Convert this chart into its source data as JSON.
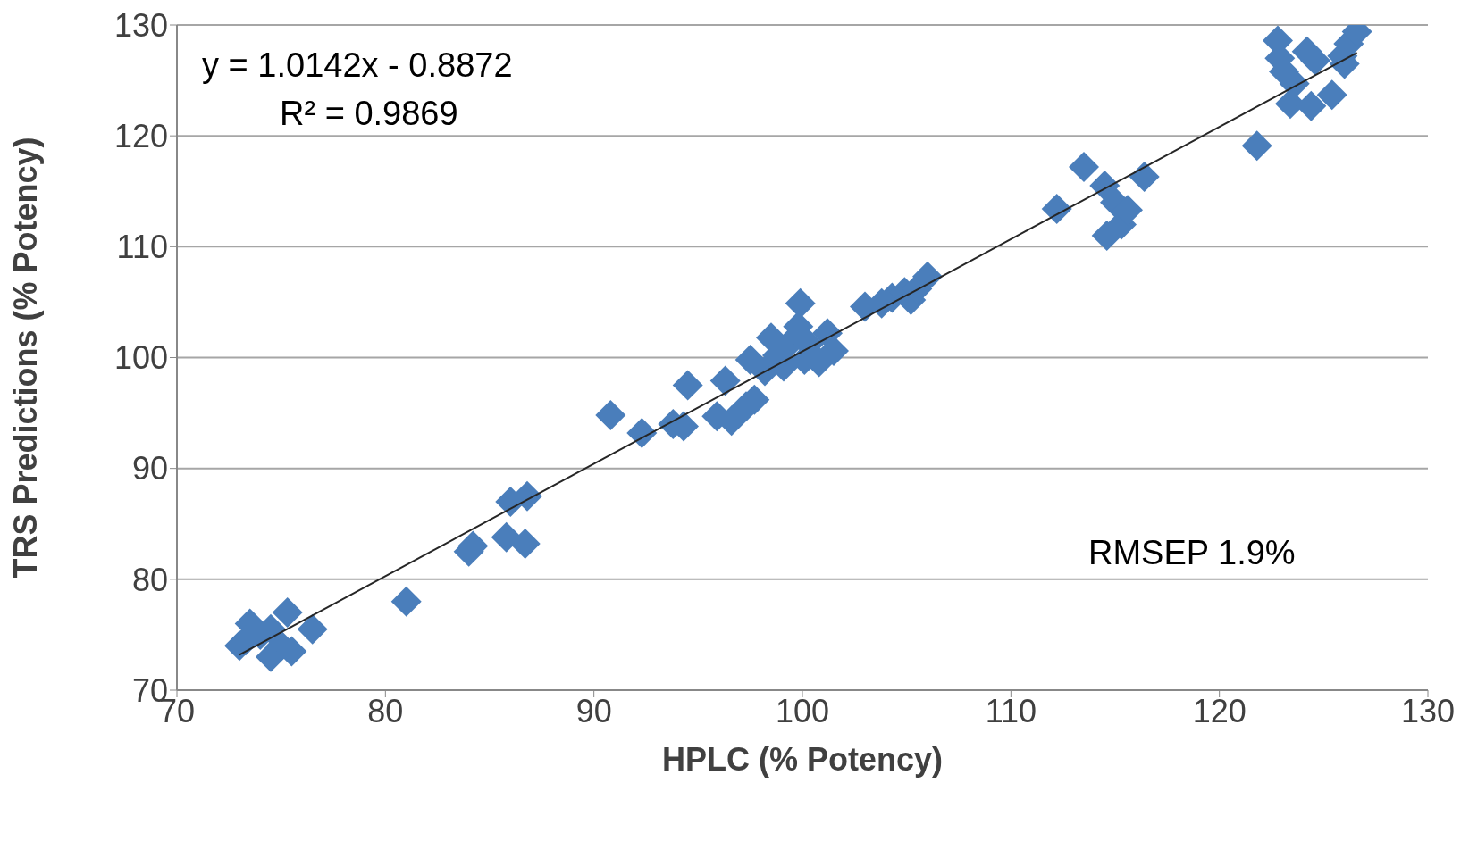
{
  "chart_data": {
    "type": "scatter",
    "xlabel": "HPLC (% Potency)",
    "ylabel": "TRS Predictions (% Potency)",
    "annotations": [
      "y = 1.0142x - 0.8872",
      "R² = 0.9869",
      "RMSEP 1.9%"
    ],
    "xlim": [
      70,
      130
    ],
    "xticks": [
      70,
      80,
      90,
      100,
      110,
      120,
      130
    ],
    "ylim": [
      70,
      130
    ],
    "yticks": [
      70,
      80,
      90,
      100,
      110,
      120,
      130
    ],
    "grid": "y",
    "marker": "diamond",
    "series": [
      {
        "color": "#4a7ebb",
        "x": [
          73,
          73.5,
          74,
          74.5,
          74.5,
          75,
          75.3,
          75.5,
          76.5,
          73.3,
          81,
          84,
          84.2,
          85.8,
          86,
          86.7,
          86.8,
          90.8,
          92.3,
          93.8,
          94.3,
          94.5,
          95.9,
          96.3,
          96.6,
          97.3,
          97.7,
          97.5,
          98.2,
          98.5,
          98.8,
          99.1,
          99.5,
          99.9,
          99.8,
          100.1,
          100.3,
          100.8,
          101.2,
          101.5,
          103,
          103.8,
          104.3,
          104.9,
          105.2,
          105.5,
          106,
          112.2,
          113.5,
          114.5,
          114.6,
          115,
          115.3,
          115.6,
          116.4,
          121.8,
          122.8,
          122.9,
          123.1,
          123.4,
          123.6,
          124.2,
          124.4,
          124.6,
          125.4,
          125.9,
          126.2,
          126.6,
          126
        ],
        "values": [
          74,
          76,
          75,
          73,
          75.5,
          74,
          77,
          73.5,
          75.5,
          74.5,
          78,
          82.5,
          83,
          83.8,
          87,
          83.2,
          87.5,
          94.8,
          93.2,
          94,
          93.8,
          97.5,
          94.7,
          97.9,
          94.3,
          95.6,
          96.2,
          99.8,
          98.8,
          101.8,
          100.2,
          99.2,
          101.5,
          104.9,
          102.8,
          99.8,
          101.2,
          99.6,
          102.2,
          100.6,
          104.6,
          104.9,
          105.4,
          105.9,
          105.2,
          106.2,
          107.3,
          113.4,
          117.2,
          115.5,
          111,
          114,
          112,
          113.3,
          116.3,
          119.1,
          128.6,
          127,
          125.8,
          122.9,
          124.7,
          127.6,
          122.7,
          126.8,
          123.7,
          127.2,
          128.3,
          129.4,
          126.5
        ]
      },
      {
        "type": "line",
        "color": "#262626",
        "marker": "none",
        "x": [
          73,
          126.6
        ],
        "values": [
          73.2,
          127.5
        ]
      }
    ]
  }
}
